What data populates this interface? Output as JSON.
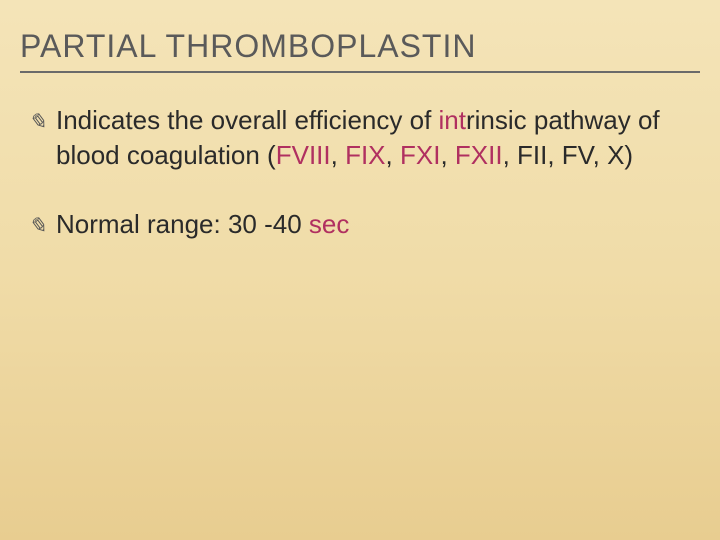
{
  "slide": {
    "title": "PARTIAL THROMBOPLASTIN",
    "title_color": "#5a5a5a",
    "title_fontsize": 32,
    "title_border_color": "#6a6a6a",
    "background_gradient": [
      "#f4e4b8",
      "#f0dca8",
      "#e8cd90"
    ],
    "bullet_icon_glyph": "✎",
    "bullets": [
      {
        "runs": [
          {
            "text": "Indicates the overall efficiency of ",
            "color": "#2a2a2a"
          },
          {
            "text": "int",
            "color": "#b03060"
          },
          {
            "text": "rinsic pathway of blood coagulation (",
            "color": "#2a2a2a"
          },
          {
            "text": "FVIII",
            "color": "#b03060"
          },
          {
            "text": ", ",
            "color": "#2a2a2a"
          },
          {
            "text": "FIX",
            "color": "#b03060"
          },
          {
            "text": ", ",
            "color": "#2a2a2a"
          },
          {
            "text": "FXI",
            "color": "#b03060"
          },
          {
            "text": ", ",
            "color": "#2a2a2a"
          },
          {
            "text": "FXII",
            "color": "#b03060"
          },
          {
            "text": ", FII, FV, X)",
            "color": "#2a2a2a"
          }
        ]
      },
      {
        "runs": [
          {
            "text": "Normal range: 30 -40 ",
            "color": "#2a2a2a"
          },
          {
            "text": "sec",
            "color": "#b03060"
          }
        ]
      }
    ],
    "body_fontsize": 26,
    "accent_color": "#b03060",
    "body_color": "#2a2a2a"
  }
}
